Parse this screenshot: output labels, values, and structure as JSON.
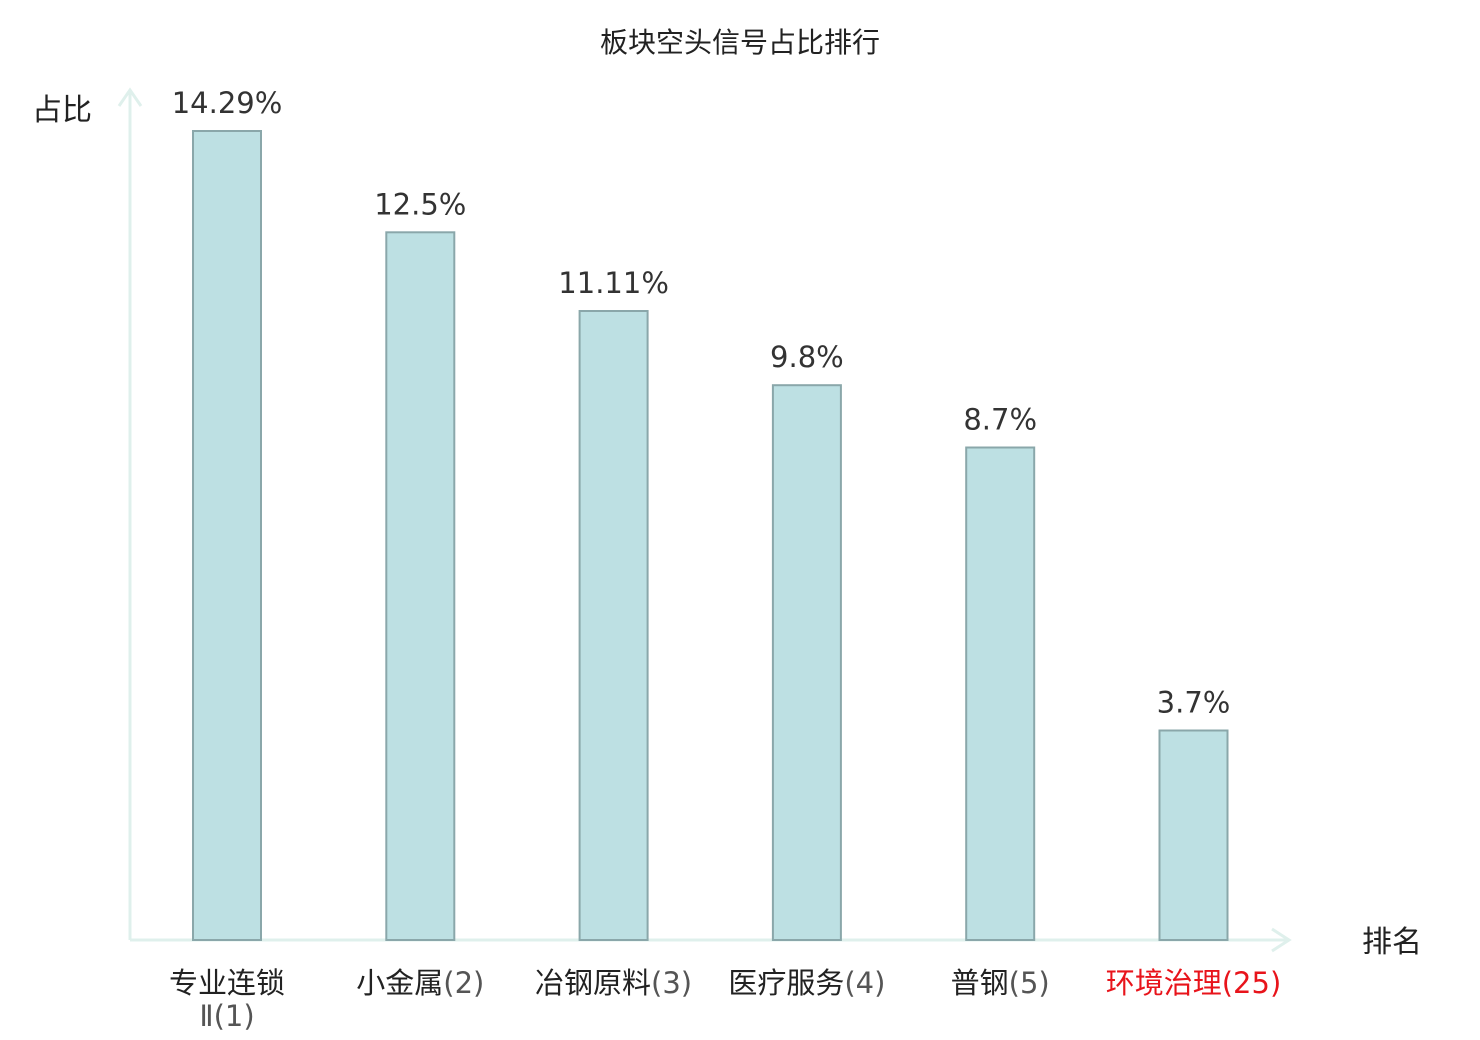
{
  "chart_data": {
    "type": "bar",
    "title": "板块空头信号占比排行",
    "ylabel": "占比",
    "xlabel": "排名",
    "categories": [
      {
        "name": "专业连锁",
        "name_line2": "Ⅱ",
        "rank": "(1)",
        "highlight": false
      },
      {
        "name": "小金属",
        "rank": "(2)",
        "highlight": false
      },
      {
        "name": "冶钢原料",
        "rank": "(3)",
        "highlight": false
      },
      {
        "name": "医疗服务",
        "rank": "(4)",
        "highlight": false
      },
      {
        "name": "普钢",
        "rank": "(5)",
        "highlight": false
      },
      {
        "name": "环境治理",
        "rank": "(25)",
        "highlight": true
      }
    ],
    "values": [
      14.29,
      12.5,
      11.11,
      9.8,
      8.7,
      3.7
    ],
    "value_labels": [
      "14.29%",
      "12.5%",
      "11.11%",
      "9.8%",
      "8.7%",
      "3.7%"
    ],
    "ylim": [
      0,
      15
    ],
    "grid": false,
    "colors": {
      "bar_fill": "#bde0e3",
      "bar_stroke": "#8aa7aa",
      "axis": "#dff0ec",
      "highlight_text": "#e8141b",
      "normal_text": "#222222",
      "rank_text": "#555555"
    }
  }
}
